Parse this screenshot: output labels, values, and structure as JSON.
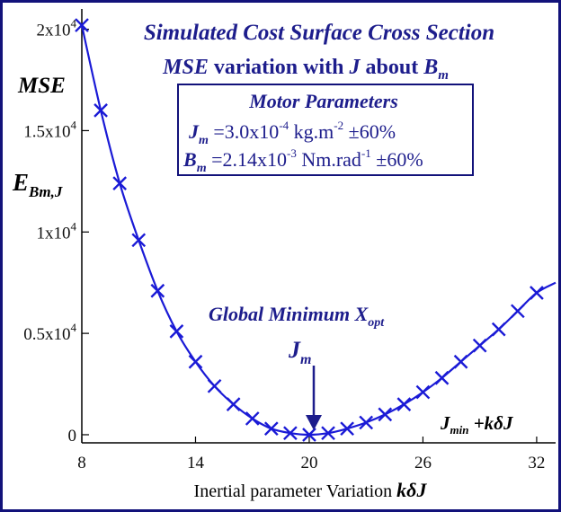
{
  "chart_data": {
    "type": "line",
    "title_line1": "Simulated Cost Surface Cross Section",
    "title_line2": {
      "p1": "MSE",
      "p2": " variation with ",
      "p3": "J",
      "p4": " about ",
      "p5": "B",
      "p5_sub": "m"
    },
    "box": {
      "heading": "Motor Parameters",
      "line1": {
        "sym": "J",
        "sub": "m",
        "pre": " =3.0x10",
        "exp": "-4",
        "unit": " kg.m",
        "unit_exp": "-2",
        "tail": " ±60%"
      },
      "line2": {
        "sym": "B",
        "sub": "m",
        "pre": " =2.14x10",
        "exp": "-3",
        "unit": " Nm.rad",
        "unit_exp": "-1",
        "tail": " ±60%"
      }
    },
    "ylabel_mse": "MSE",
    "ylabel_e": {
      "sym": "E",
      "sub": "Bm,J"
    },
    "annotation_global": {
      "text": "Global Minimum X",
      "sub": "opt"
    },
    "annotation_jm": {
      "sym": "J",
      "sub": "m"
    },
    "xaxis_note": {
      "sym": "J",
      "sub": "min",
      "rest": " +kδJ"
    },
    "xlabel": {
      "text": "Inertial parameter Variation ",
      "italic": "kδJ"
    },
    "xlim": [
      8,
      33
    ],
    "ylim": [
      -400,
      21000
    ],
    "x_ticks": [
      8,
      14,
      20,
      26,
      32
    ],
    "y_ticks": [
      {
        "value": 0,
        "base": "0",
        "exp": ""
      },
      {
        "value": 5000,
        "base": "0.5x10",
        "exp": "4"
      },
      {
        "value": 10000,
        "base": "1x10",
        "exp": "4"
      },
      {
        "value": 15000,
        "base": "1.5x10",
        "exp": "4"
      },
      {
        "value": 20000,
        "base": "2x10",
        "exp": "4"
      }
    ],
    "x": [
      8,
      9,
      10,
      11,
      12,
      13,
      14,
      15,
      16,
      17,
      18,
      19,
      20,
      21,
      22,
      23,
      24,
      25,
      26,
      27,
      28,
      29,
      30,
      31,
      32
    ],
    "y": [
      20200,
      16000,
      12400,
      9600,
      7100,
      5100,
      3600,
      2400,
      1500,
      800,
      300,
      80,
      0,
      80,
      300,
      600,
      1000,
      1500,
      2100,
      2800,
      3600,
      4400,
      5200,
      6100,
      7000
    ],
    "curve_end": {
      "x": 33,
      "y": 7500
    },
    "colors": {
      "line": "#1a1ad6",
      "text_blue": "#1d1d8c",
      "frame": "#12127a"
    }
  }
}
